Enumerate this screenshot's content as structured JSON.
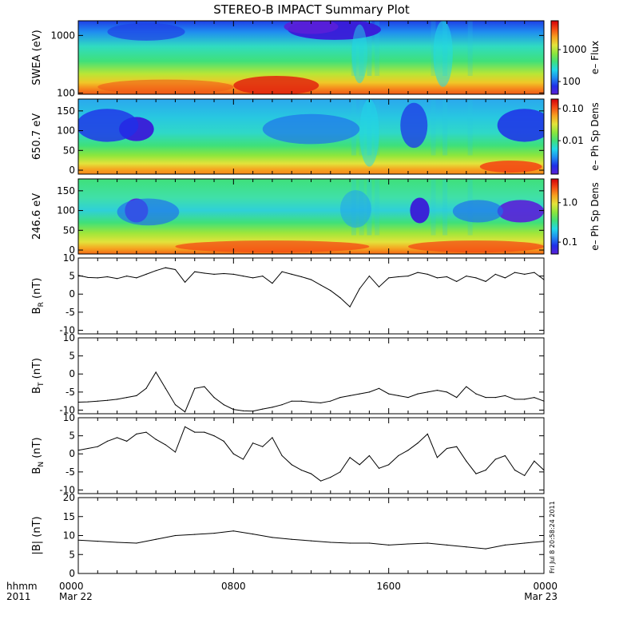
{
  "title": "STEREO-B IMPACT Summary Plot",
  "footer": {
    "left_label_1": "hhmm",
    "left_label_2": "2011",
    "stamp": "Fri Jul 8 20:58:24 2011"
  },
  "colors": {
    "colormap": [
      "#5a1fd8",
      "#1f2fe8",
      "#1f8cf0",
      "#20d8e8",
      "#3fe07a",
      "#8ce63c",
      "#e3e33b",
      "#f6a21f",
      "#f34a14",
      "#d3000a"
    ],
    "line": "#000000",
    "axis": "#000000"
  },
  "chart_data": [
    {
      "type": "heatmap",
      "ylabel": "SWEA (eV)",
      "yscale": "log",
      "ylim": [
        95,
        1800
      ],
      "yticks": [
        "100",
        "1000"
      ],
      "colorbar": {
        "label": "e– Flux",
        "scale": "log",
        "range": [
          40,
          8000
        ],
        "ticks": [
          "100",
          "1000"
        ]
      }
    },
    {
      "type": "heatmap",
      "ylabel": "650.7 eV",
      "ylim": [
        -10,
        180
      ],
      "yticks": [
        "0",
        "50",
        "100",
        "150"
      ],
      "colorbar": {
        "label": "e– Ph Sp Dens",
        "scale": "log",
        "range": [
          0.0009,
          0.2
        ],
        "ticks": [
          "0.01",
          "0.10"
        ]
      }
    },
    {
      "type": "heatmap",
      "ylabel": "246.6 eV",
      "ylim": [
        -10,
        180
      ],
      "yticks": [
        "0",
        "50",
        "100",
        "150"
      ],
      "colorbar": {
        "label": "e– Ph Sp Dens",
        "scale": "log",
        "range": [
          0.05,
          4.0
        ],
        "ticks": [
          "0.1",
          "1.0"
        ]
      }
    },
    {
      "type": "line",
      "ylabel": "B_R (nT)",
      "ylim": [
        -11,
        10
      ],
      "yticks": [
        "-10",
        "-5",
        "0",
        "5",
        "10"
      ],
      "x": [
        0,
        0.5,
        1,
        1.5,
        2,
        2.5,
        3,
        3.5,
        4,
        4.5,
        5,
        5.5,
        6,
        6.5,
        7,
        7.5,
        8,
        8.5,
        9,
        9.5,
        10,
        10.5,
        11,
        11.5,
        12,
        12.5,
        13,
        13.5,
        14,
        14.5,
        15,
        15.5,
        16,
        16.5,
        17,
        17.5,
        18,
        18.5,
        19,
        19.5,
        20,
        20.5,
        21,
        21.5,
        22,
        22.5,
        23,
        23.5,
        24
      ],
      "y": [
        5.2,
        4.6,
        4.5,
        4.8,
        4.3,
        5,
        4.5,
        5.5,
        6.5,
        7.3,
        6.8,
        3.3,
        6.2,
        5.8,
        5.5,
        5.7,
        5.5,
        5.0,
        4.5,
        5.0,
        3.0,
        6.2,
        5.5,
        4.8,
        4.0,
        2.5,
        1.0,
        -1.0,
        -3.5,
        1.5,
        5.0,
        2.0,
        4.5,
        4.8,
        5.0,
        6.0,
        5.5,
        4.5,
        4.8,
        3.5,
        5.0,
        4.5,
        3.5,
        5.5,
        4.5,
        6.0,
        5.5,
        6.0,
        4.0
      ]
    },
    {
      "type": "line",
      "ylabel": "B_T (nT)",
      "ylim": [
        -11,
        10
      ],
      "yticks": [
        "-10",
        "-5",
        "0",
        "5",
        "10"
      ],
      "x": [
        0,
        0.5,
        1,
        1.5,
        2,
        2.5,
        3,
        3.5,
        4,
        4.5,
        5,
        5.5,
        6,
        6.5,
        7,
        7.5,
        8,
        8.5,
        9,
        9.5,
        10,
        10.5,
        11,
        11.5,
        12,
        12.5,
        13,
        13.5,
        14,
        14.5,
        15,
        15.5,
        16,
        16.5,
        17,
        17.5,
        18,
        18.5,
        19,
        19.5,
        20,
        20.5,
        21,
        21.5,
        22,
        22.5,
        23,
        23.5,
        24
      ],
      "y": [
        -7.8,
        -7.7,
        -7.5,
        -7.3,
        -7.0,
        -6.5,
        -6.0,
        -4.0,
        0.5,
        -4.0,
        -8.5,
        -10.5,
        -4.0,
        -3.5,
        -6.5,
        -8.5,
        -9.8,
        -10.2,
        -10.3,
        -9.7,
        -9.2,
        -8.5,
        -7.5,
        -7.5,
        -7.8,
        -8.0,
        -7.5,
        -6.5,
        -6.0,
        -5.5,
        -5.0,
        -4.0,
        -5.5,
        -6.0,
        -6.5,
        -5.5,
        -5.0,
        -4.5,
        -5.0,
        -6.5,
        -3.5,
        -5.5,
        -6.5,
        -6.5,
        -6.0,
        -7.0,
        -7.0,
        -6.5,
        -7.5
      ]
    },
    {
      "type": "line",
      "ylabel": "B_N (nT)",
      "ylim": [
        -11,
        10
      ],
      "yticks": [
        "-10",
        "-5",
        "0",
        "5",
        "10"
      ],
      "x": [
        0,
        0.5,
        1,
        1.5,
        2,
        2.5,
        3,
        3.5,
        4,
        4.5,
        5,
        5.5,
        6,
        6.5,
        7,
        7.5,
        8,
        8.5,
        9,
        9.5,
        10,
        10.5,
        11,
        11.5,
        12,
        12.5,
        13,
        13.5,
        14,
        14.5,
        15,
        15.5,
        16,
        16.5,
        17,
        17.5,
        18,
        18.5,
        19,
        19.5,
        20,
        20.5,
        21,
        21.5,
        22,
        22.5,
        23,
        23.5,
        24
      ],
      "y": [
        1.0,
        1.5,
        2.0,
        3.5,
        4.5,
        3.5,
        5.5,
        6.0,
        4.0,
        2.5,
        0.5,
        7.5,
        6.0,
        6.0,
        5.0,
        3.5,
        0,
        -1.5,
        3.0,
        2.0,
        4.5,
        -0.5,
        -3.0,
        -4.5,
        -5.5,
        -7.5,
        -6.5,
        -5.0,
        -1.0,
        -3.0,
        -0.5,
        -4.0,
        -3.0,
        -0.5,
        1.0,
        3.0,
        5.5,
        -1.0,
        1.5,
        2.0,
        -2.0,
        -5.5,
        -4.5,
        -1.5,
        -0.5,
        -4.5,
        -6.0,
        -2.0,
        -4.5
      ]
    },
    {
      "type": "line",
      "ylabel": "|B| (nT)",
      "ylim": [
        0,
        20
      ],
      "yticks": [
        "0",
        "5",
        "10",
        "15",
        "20"
      ],
      "x": [
        0,
        1,
        2,
        3,
        4,
        5,
        6,
        7,
        8,
        9,
        10,
        11,
        12,
        13,
        14,
        15,
        16,
        17,
        18,
        19,
        20,
        21,
        22,
        23,
        24
      ],
      "y": [
        8.8,
        8.5,
        8.2,
        8.0,
        9.0,
        10.0,
        10.3,
        10.6,
        11.2,
        10.4,
        9.5,
        9.0,
        8.6,
        8.2,
        8.0,
        8.0,
        7.5,
        7.8,
        8.0,
        7.5,
        7.0,
        6.5,
        7.5,
        8.0,
        8.5
      ]
    }
  ],
  "xaxis": {
    "range": [
      0,
      24
    ],
    "ticks": [
      {
        "value": 0,
        "label": "0000",
        "sublabel": "Mar 22"
      },
      {
        "value": 8,
        "label": "0800",
        "sublabel": ""
      },
      {
        "value": 16,
        "label": "1600",
        "sublabel": ""
      },
      {
        "value": 24,
        "label": "0000",
        "sublabel": "Mar 23"
      }
    ]
  }
}
